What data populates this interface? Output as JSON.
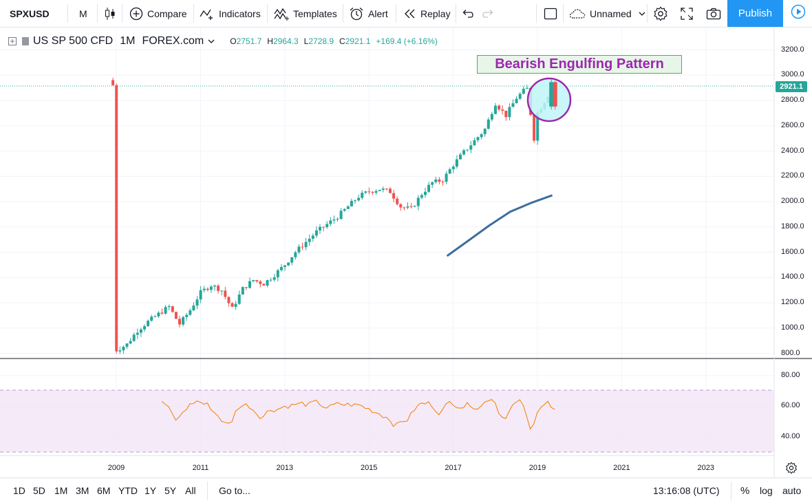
{
  "toolbar": {
    "symbol": "SPXUSD",
    "interval": "M",
    "compare": "Compare",
    "indicators": "Indicators",
    "templates": "Templates",
    "alert": "Alert",
    "replay": "Replay",
    "layout_name": "Unnamed",
    "publish": "Publish"
  },
  "legend": {
    "title": "US SP 500 CFD",
    "interval": "1M",
    "source": "FOREX.com",
    "open_k": "O",
    "open": "2751.7",
    "high_k": "H",
    "high": "2964.3",
    "low_k": "L",
    "low": "2728.9",
    "close_k": "C",
    "close": "2921.1",
    "change": "+169.4 (+6.16%)"
  },
  "annotation": {
    "label": "Bearish Engulfing Pattern"
  },
  "price_scale": {
    "current": "2921.1",
    "labels": [
      "3200.0",
      "3000.0",
      "2800.0",
      "2600.0",
      "2400.0",
      "2200.0",
      "2000.0",
      "1800.0",
      "1600.0",
      "1400.0",
      "1200.0",
      "1000.0",
      "800.0"
    ]
  },
  "rsi_scale": {
    "labels": [
      "80.00",
      "60.00",
      "40.00"
    ]
  },
  "time_scale": {
    "labels": [
      "2009",
      "2011",
      "2013",
      "2015",
      "2017",
      "2019",
      "2021",
      "2023"
    ]
  },
  "bottom": {
    "ranges": [
      "1D",
      "5D",
      "1M",
      "3M",
      "6M",
      "YTD",
      "1Y",
      "5Y",
      "All"
    ],
    "goto": "Go to...",
    "time": "13:16:08 (UTC)",
    "percent": "%",
    "log": "log",
    "auto": "auto"
  },
  "colors": {
    "up": "#26a69a",
    "down": "#ef5350",
    "accent": "#2196f3",
    "rsi": "#f57c00",
    "ma": "#3c6e9c",
    "annotation": "#9c27b0"
  },
  "chart_data": {
    "type": "candlestick",
    "title": "US SP 500 CFD",
    "interval": "1M",
    "y_range": [
      760,
      3290
    ],
    "series_close_approx": [
      [
        2009.0,
        825
      ],
      [
        2009.25,
        870
      ],
      [
        2009.5,
        980
      ],
      [
        2009.75,
        1050
      ],
      [
        2010.0,
        1110
      ],
      [
        2010.25,
        1170
      ],
      [
        2010.5,
        1030
      ],
      [
        2010.75,
        1140
      ],
      [
        2011.0,
        1280
      ],
      [
        2011.25,
        1340
      ],
      [
        2011.5,
        1300
      ],
      [
        2011.75,
        1150
      ],
      [
        2012.0,
        1310
      ],
      [
        2012.25,
        1380
      ],
      [
        2012.5,
        1350
      ],
      [
        2012.75,
        1420
      ],
      [
        2013.0,
        1500
      ],
      [
        2013.25,
        1600
      ],
      [
        2013.5,
        1680
      ],
      [
        2013.75,
        1760
      ],
      [
        2014.0,
        1820
      ],
      [
        2014.25,
        1880
      ],
      [
        2014.5,
        1960
      ],
      [
        2014.75,
        2040
      ],
      [
        2015.0,
        2080
      ],
      [
        2015.25,
        2100
      ],
      [
        2015.5,
        2080
      ],
      [
        2015.75,
        1960
      ],
      [
        2016.0,
        1940
      ],
      [
        2016.25,
        2060
      ],
      [
        2016.5,
        2150
      ],
      [
        2016.75,
        2170
      ],
      [
        2017.0,
        2290
      ],
      [
        2017.25,
        2390
      ],
      [
        2017.5,
        2480
      ],
      [
        2017.75,
        2570
      ],
      [
        2018.0,
        2780
      ],
      [
        2018.25,
        2680
      ],
      [
        2018.5,
        2820
      ],
      [
        2018.75,
        2900
      ],
      [
        2018.92,
        2500
      ],
      [
        2019.0,
        2700
      ],
      [
        2019.25,
        2840
      ],
      [
        2019.33,
        2945
      ],
      [
        2019.42,
        2752
      ],
      [
        2019.5,
        2921
      ]
    ],
    "moving_average": [
      [
        2017.0,
        1570
      ],
      [
        2017.5,
        1690
      ],
      [
        2018.0,
        1810
      ],
      [
        2018.5,
        1920
      ],
      [
        2019.0,
        1990
      ],
      [
        2019.5,
        2050
      ]
    ],
    "rsi": {
      "overbought": 70,
      "oversold": 30,
      "last": 60
    }
  }
}
